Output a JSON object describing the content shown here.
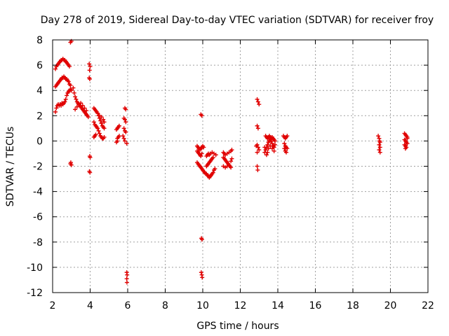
{
  "chart_data": {
    "type": "scatter",
    "title": "Day 278 of 2019, Sidereal Day-to-day VTEC variation (SDTVAR) for receiver froy",
    "xlabel": "GPS time / hours",
    "ylabel": "SDTVAR / TECUs",
    "xlim": [
      2,
      22
    ],
    "ylim": [
      -12,
      8
    ],
    "xticks": [
      2,
      4,
      6,
      8,
      10,
      12,
      14,
      16,
      18,
      20,
      22
    ],
    "yticks": [
      -12,
      -10,
      -8,
      -6,
      -4,
      -2,
      0,
      2,
      4,
      6,
      8
    ],
    "grid": true,
    "marker": "+",
    "color": "#e00000",
    "series": [
      {
        "name": "SDTVAR",
        "points": [
          [
            2.15,
            2.3
          ],
          [
            2.2,
            2.6
          ],
          [
            2.25,
            2.8
          ],
          [
            2.3,
            2.9
          ],
          [
            2.35,
            2.8
          ],
          [
            2.4,
            2.9
          ],
          [
            2.45,
            2.8
          ],
          [
            2.5,
            3.0
          ],
          [
            2.55,
            2.9
          ],
          [
            2.6,
            3.0
          ],
          [
            2.65,
            3.1
          ],
          [
            2.7,
            3.3
          ],
          [
            2.75,
            3.6
          ],
          [
            2.8,
            3.8
          ],
          [
            2.85,
            3.9
          ],
          [
            2.9,
            4.0
          ],
          [
            2.95,
            4.1
          ],
          [
            3.0,
            4.0
          ],
          [
            2.15,
            4.3
          ],
          [
            2.2,
            4.4
          ],
          [
            2.25,
            4.5
          ],
          [
            2.3,
            4.6
          ],
          [
            2.35,
            4.7
          ],
          [
            2.4,
            4.8
          ],
          [
            2.45,
            4.9
          ],
          [
            2.5,
            5.0
          ],
          [
            2.55,
            5.0
          ],
          [
            2.6,
            5.1
          ],
          [
            2.65,
            5.0
          ],
          [
            2.7,
            4.9
          ],
          [
            2.75,
            4.9
          ],
          [
            2.8,
            4.8
          ],
          [
            2.85,
            4.7
          ],
          [
            2.9,
            4.5
          ],
          [
            2.95,
            4.4
          ],
          [
            2.15,
            5.7
          ],
          [
            2.2,
            5.9
          ],
          [
            2.25,
            6.0
          ],
          [
            2.3,
            6.1
          ],
          [
            2.35,
            6.2
          ],
          [
            2.4,
            6.3
          ],
          [
            2.45,
            6.4
          ],
          [
            2.5,
            6.4
          ],
          [
            2.55,
            6.5
          ],
          [
            2.6,
            6.4
          ],
          [
            2.65,
            6.4
          ],
          [
            2.7,
            6.3
          ],
          [
            2.75,
            6.2
          ],
          [
            2.8,
            6.1
          ],
          [
            2.85,
            6.0
          ],
          [
            2.9,
            5.9
          ],
          [
            2.95,
            7.8
          ],
          [
            3.0,
            7.9
          ],
          [
            2.95,
            -1.8
          ],
          [
            3.0,
            -1.9
          ],
          [
            2.97,
            -1.7
          ],
          [
            3.1,
            4.2
          ],
          [
            3.15,
            3.8
          ],
          [
            3.2,
            3.5
          ],
          [
            3.25,
            3.3
          ],
          [
            3.3,
            3.1
          ],
          [
            3.35,
            3.0
          ],
          [
            3.4,
            2.9
          ],
          [
            3.45,
            2.8
          ],
          [
            3.5,
            2.7
          ],
          [
            3.55,
            2.6
          ],
          [
            3.6,
            2.5
          ],
          [
            3.65,
            2.4
          ],
          [
            3.7,
            2.3
          ],
          [
            3.75,
            2.2
          ],
          [
            3.8,
            2.1
          ],
          [
            3.85,
            2.0
          ],
          [
            3.9,
            1.9
          ],
          [
            3.2,
            2.5
          ],
          [
            3.3,
            2.7
          ],
          [
            3.4,
            2.9
          ],
          [
            3.5,
            3.0
          ],
          [
            3.6,
            2.8
          ],
          [
            3.7,
            2.6
          ],
          [
            3.8,
            2.4
          ],
          [
            3.95,
            6.1
          ],
          [
            4.0,
            5.9
          ],
          [
            3.97,
            5.6
          ],
          [
            3.95,
            5.0
          ],
          [
            3.98,
            4.9
          ],
          [
            3.98,
            -1.2
          ],
          [
            4.0,
            -1.3
          ],
          [
            3.96,
            -2.4
          ],
          [
            3.99,
            -2.5
          ],
          [
            4.2,
            2.6
          ],
          [
            4.25,
            2.5
          ],
          [
            4.3,
            2.4
          ],
          [
            4.35,
            2.3
          ],
          [
            4.4,
            2.2
          ],
          [
            4.45,
            2.0
          ],
          [
            4.5,
            1.8
          ],
          [
            4.55,
            1.6
          ],
          [
            4.6,
            1.4
          ],
          [
            4.65,
            1.2
          ],
          [
            4.7,
            1.1
          ],
          [
            4.75,
            1.0
          ],
          [
            4.2,
            1.5
          ],
          [
            4.25,
            1.3
          ],
          [
            4.3,
            1.2
          ],
          [
            4.35,
            1.1
          ],
          [
            4.4,
            1.0
          ],
          [
            4.45,
            0.8
          ],
          [
            4.5,
            0.6
          ],
          [
            4.55,
            0.4
          ],
          [
            4.6,
            0.3
          ],
          [
            4.65,
            0.2
          ],
          [
            4.7,
            0.2
          ],
          [
            4.75,
            0.3
          ],
          [
            4.2,
            0.3
          ],
          [
            4.25,
            0.4
          ],
          [
            4.3,
            0.5
          ],
          [
            4.5,
            2.0
          ],
          [
            4.6,
            1.9
          ],
          [
            4.7,
            1.7
          ],
          [
            4.75,
            1.5
          ],
          [
            5.4,
            0.9
          ],
          [
            5.45,
            1.0
          ],
          [
            5.5,
            1.1
          ],
          [
            5.55,
            1.2
          ],
          [
            5.45,
            0.2
          ],
          [
            5.5,
            0.3
          ],
          [
            5.55,
            0.4
          ],
          [
            5.4,
            -0.1
          ],
          [
            5.45,
            0.0
          ],
          [
            5.85,
            2.6
          ],
          [
            5.9,
            2.5
          ],
          [
            5.8,
            1.8
          ],
          [
            5.85,
            1.7
          ],
          [
            5.9,
            1.5
          ],
          [
            5.8,
            1.0
          ],
          [
            5.85,
            0.8
          ],
          [
            5.9,
            0.7
          ],
          [
            5.75,
            0.4
          ],
          [
            5.8,
            0.2
          ],
          [
            5.85,
            0.0
          ],
          [
            5.95,
            -0.2
          ],
          [
            5.95,
            -10.4
          ],
          [
            5.97,
            -10.6
          ],
          [
            5.95,
            -10.9
          ],
          [
            5.96,
            -11.2
          ],
          [
            9.7,
            -0.4
          ],
          [
            9.75,
            -0.5
          ],
          [
            9.8,
            -0.6
          ],
          [
            9.85,
            -0.7
          ],
          [
            9.9,
            -0.6
          ],
          [
            9.95,
            -0.5
          ],
          [
            10.0,
            -0.4
          ],
          [
            10.05,
            -0.5
          ],
          [
            9.7,
            -0.8
          ],
          [
            9.75,
            -0.9
          ],
          [
            9.8,
            -1.0
          ],
          [
            9.85,
            -1.1
          ],
          [
            9.9,
            -1.2
          ],
          [
            9.95,
            -1.0
          ],
          [
            9.7,
            -1.7
          ],
          [
            9.75,
            -1.8
          ],
          [
            9.8,
            -1.9
          ],
          [
            9.85,
            -2.0
          ],
          [
            9.9,
            -2.1
          ],
          [
            9.95,
            -2.2
          ],
          [
            10.0,
            -2.3
          ],
          [
            10.05,
            -2.4
          ],
          [
            10.1,
            -2.5
          ],
          [
            10.15,
            -2.6
          ],
          [
            9.9,
            2.1
          ],
          [
            9.95,
            2.0
          ],
          [
            9.93,
            -7.7
          ],
          [
            9.96,
            -7.8
          ],
          [
            9.92,
            -10.4
          ],
          [
            9.95,
            -10.6
          ],
          [
            9.97,
            -10.8
          ],
          [
            10.2,
            -2.6
          ],
          [
            10.25,
            -2.7
          ],
          [
            10.3,
            -2.8
          ],
          [
            10.35,
            -2.9
          ],
          [
            10.4,
            -2.8
          ],
          [
            10.45,
            -2.7
          ],
          [
            10.5,
            -2.6
          ],
          [
            10.55,
            -2.5
          ],
          [
            10.6,
            -2.3
          ],
          [
            10.65,
            -2.2
          ],
          [
            10.2,
            -2.0
          ],
          [
            10.25,
            -1.9
          ],
          [
            10.3,
            -1.8
          ],
          [
            10.35,
            -1.7
          ],
          [
            10.4,
            -1.6
          ],
          [
            10.45,
            -1.5
          ],
          [
            10.5,
            -1.4
          ],
          [
            10.55,
            -1.3
          ],
          [
            10.2,
            -1.2
          ],
          [
            10.25,
            -1.1
          ],
          [
            10.3,
            -1.0
          ],
          [
            10.35,
            -1.1
          ],
          [
            10.4,
            -1.0
          ],
          [
            10.5,
            -0.9
          ],
          [
            10.6,
            -1.0
          ],
          [
            10.7,
            -1.1
          ],
          [
            11.1,
            -1.3
          ],
          [
            11.15,
            -1.4
          ],
          [
            11.2,
            -1.5
          ],
          [
            11.25,
            -1.6
          ],
          [
            11.3,
            -1.7
          ],
          [
            11.35,
            -1.8
          ],
          [
            11.4,
            -1.9
          ],
          [
            11.45,
            -2.0
          ],
          [
            11.5,
            -2.1
          ],
          [
            11.1,
            -0.9
          ],
          [
            11.15,
            -1.0
          ],
          [
            11.2,
            -1.1
          ],
          [
            11.3,
            -1.0
          ],
          [
            11.4,
            -0.9
          ],
          [
            11.5,
            -0.8
          ],
          [
            11.55,
            -0.7
          ],
          [
            11.1,
            -2.0
          ],
          [
            11.2,
            -2.1
          ],
          [
            11.3,
            -2.0
          ],
          [
            11.4,
            -1.9
          ],
          [
            11.5,
            -1.6
          ],
          [
            11.55,
            -1.4
          ],
          [
            12.9,
            3.3
          ],
          [
            12.95,
            3.1
          ],
          [
            13.0,
            2.9
          ],
          [
            12.9,
            1.2
          ],
          [
            12.95,
            1.0
          ],
          [
            12.9,
            -2.0
          ],
          [
            12.93,
            -2.3
          ],
          [
            12.9,
            -0.3
          ],
          [
            12.95,
            -0.5
          ],
          [
            13.0,
            -0.7
          ],
          [
            12.85,
            -0.4
          ],
          [
            12.9,
            -0.9
          ],
          [
            13.3,
            -0.9
          ],
          [
            13.35,
            -0.7
          ],
          [
            13.4,
            -0.5
          ],
          [
            13.45,
            -0.3
          ],
          [
            13.5,
            -0.1
          ],
          [
            13.55,
            0.0
          ],
          [
            13.6,
            0.1
          ],
          [
            13.65,
            0.2
          ],
          [
            13.7,
            0.3
          ],
          [
            13.75,
            0.2
          ],
          [
            13.8,
            0.1
          ],
          [
            13.85,
            0.0
          ],
          [
            13.35,
            0.4
          ],
          [
            13.4,
            0.3
          ],
          [
            13.45,
            0.2
          ],
          [
            13.5,
            0.3
          ],
          [
            13.55,
            0.4
          ],
          [
            13.6,
            0.3
          ],
          [
            13.65,
            0.0
          ],
          [
            13.7,
            -0.2
          ],
          [
            13.75,
            -0.4
          ],
          [
            13.8,
            -0.5
          ],
          [
            13.85,
            -0.3
          ],
          [
            13.3,
            -0.5
          ],
          [
            13.4,
            -1.1
          ],
          [
            13.45,
            -0.9
          ],
          [
            13.5,
            -0.6
          ],
          [
            13.6,
            -0.4
          ],
          [
            13.7,
            -0.6
          ],
          [
            13.8,
            -0.8
          ],
          [
            14.3,
            0.4
          ],
          [
            14.35,
            0.3
          ],
          [
            14.4,
            0.2
          ],
          [
            14.45,
            0.3
          ],
          [
            14.5,
            0.4
          ],
          [
            14.35,
            -0.2
          ],
          [
            14.4,
            -0.4
          ],
          [
            14.45,
            -0.5
          ],
          [
            14.5,
            -0.6
          ],
          [
            14.4,
            -0.8
          ],
          [
            14.45,
            -0.9
          ],
          [
            14.35,
            -0.6
          ],
          [
            19.35,
            0.4
          ],
          [
            19.4,
            0.2
          ],
          [
            19.45,
            -0.1
          ],
          [
            19.4,
            -0.3
          ],
          [
            19.45,
            -0.5
          ],
          [
            19.4,
            -0.7
          ],
          [
            19.45,
            -0.9
          ],
          [
            19.42,
            0.0
          ],
          [
            20.75,
            0.6
          ],
          [
            20.8,
            0.5
          ],
          [
            20.85,
            0.4
          ],
          [
            20.9,
            0.3
          ],
          [
            20.75,
            0.1
          ],
          [
            20.8,
            0.0
          ],
          [
            20.85,
            -0.1
          ],
          [
            20.9,
            -0.2
          ],
          [
            20.8,
            -0.4
          ],
          [
            20.85,
            -0.5
          ],
          [
            20.8,
            -0.6
          ],
          [
            20.75,
            -0.3
          ],
          [
            20.9,
            0.2
          ]
        ]
      }
    ]
  }
}
